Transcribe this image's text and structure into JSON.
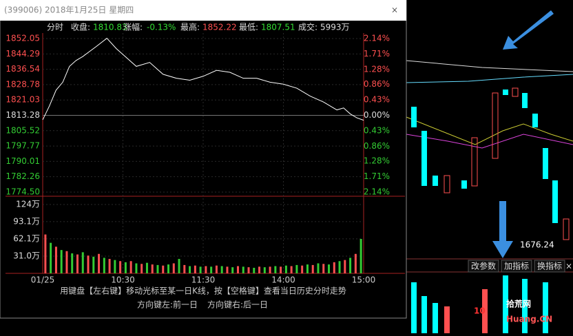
{
  "window": {
    "title": "(399006) 2018年1月25日 星期四",
    "close": "×"
  },
  "info": {
    "mode": "分时",
    "close_label": "收盘:",
    "close": "1810.83",
    "change_label": "涨幅:",
    "change": "-0.13%",
    "high_label": "最高:",
    "high": "1852.22",
    "low_label": "最低:",
    "low": "1807.51",
    "volume_label": "成交:",
    "volume": "5993万"
  },
  "chart_data": {
    "type": "line",
    "color": "#ffffff",
    "x": [
      0,
      5,
      10,
      15,
      20,
      25,
      30,
      40,
      48,
      55,
      60,
      70,
      80,
      90,
      100,
      110,
      120,
      130,
      140,
      150,
      160,
      170,
      180,
      190,
      200,
      210,
      220,
      225,
      230,
      235,
      240
    ],
    "values": [
      1811,
      1818,
      1826,
      1830,
      1838,
      1841,
      1843,
      1848,
      1852.2,
      1847,
      1844,
      1838,
      1840,
      1834,
      1832,
      1831,
      1833,
      1836,
      1835,
      1832,
      1832,
      1830,
      1829,
      1827,
      1823,
      1820,
      1816,
      1817,
      1814,
      1812,
      1810.8
    ],
    "xlim": [
      0,
      240
    ],
    "xticks": [
      {
        "value": 0,
        "label": "01/25"
      },
      {
        "value": 60,
        "label": "10:30"
      },
      {
        "value": 120,
        "label": "11:30"
      },
      {
        "value": 180,
        "label": "14:00"
      },
      {
        "value": 240,
        "label": "15:00"
      }
    ],
    "ylim": [
      1774.5,
      1852.05
    ],
    "yticks": [
      1852.05,
      1844.29,
      1836.54,
      1828.78,
      1821.03,
      1813.28,
      1805.52,
      1797.77,
      1790.01,
      1782.26,
      {
        "value": 1774.5,
        "label": "1774.50"
      }
    ],
    "y2lim": [
      -2.14,
      2.14
    ],
    "y2ticks": [
      {
        "value": 2.14,
        "label": "2.14%"
      },
      {
        "value": 1.71,
        "label": "1.71%"
      },
      {
        "value": 1.28,
        "label": "1.28%"
      },
      {
        "value": 0.86,
        "label": "0.86%"
      },
      {
        "value": 0.43,
        "label": "0.43%"
      },
      {
        "value": 0,
        "label": "0.00%"
      },
      {
        "value": -0.43,
        "label": "0.43%"
      },
      {
        "value": -0.86,
        "label": "0.86%"
      },
      {
        "value": -1.28,
        "label": "1.28%"
      },
      {
        "value": -1.71,
        "label": "1.71%"
      },
      {
        "value": -2.14,
        "label": "2.14%"
      }
    ],
    "volume": {
      "type": "bar",
      "x": [
        2,
        6,
        10,
        14,
        18,
        22,
        26,
        30,
        34,
        38,
        42,
        46,
        50,
        54,
        58,
        62,
        66,
        70,
        74,
        78,
        82,
        86,
        90,
        94,
        98,
        102,
        106,
        110,
        114,
        118,
        122,
        126,
        130,
        134,
        138,
        142,
        146,
        150,
        154,
        158,
        162,
        166,
        170,
        174,
        178,
        182,
        186,
        190,
        194,
        198,
        202,
        206,
        210,
        214,
        218,
        222,
        226,
        230,
        234,
        238
      ],
      "values": [
        70,
        55,
        48,
        42,
        40,
        36,
        34,
        38,
        32,
        30,
        35,
        28,
        26,
        24,
        22,
        20,
        22,
        18,
        17,
        19,
        16,
        15,
        14,
        16,
        18,
        26,
        15,
        13,
        14,
        12,
        13,
        12,
        14,
        13,
        12,
        11,
        13,
        12,
        11,
        10,
        12,
        11,
        12,
        13,
        12,
        14,
        13,
        15,
        14,
        16,
        15,
        18,
        17,
        16,
        20,
        22,
        24,
        28,
        35,
        62
      ],
      "ylim": [
        0,
        124
      ],
      "yticks": [
        {
          "value": 124,
          "label": "124万"
        },
        {
          "value": 93.1,
          "label": "93.1万"
        },
        {
          "value": 62.1,
          "label": "62.1万"
        },
        {
          "value": 31,
          "label": "31.0万"
        }
      ]
    }
  },
  "help": [
    "用键盘【左右键】移动光标至某一日K线，按【空格键】查看当日历史分时走势",
    "方向键左:前一日",
    "方向键右:后一日"
  ],
  "background": {
    "price_label": "1676.24",
    "buttons": [
      "改参数",
      "加指标",
      "换指标",
      "×"
    ]
  },
  "watermark": {
    "text": "拾荒网",
    "url": "Huang.CN"
  }
}
